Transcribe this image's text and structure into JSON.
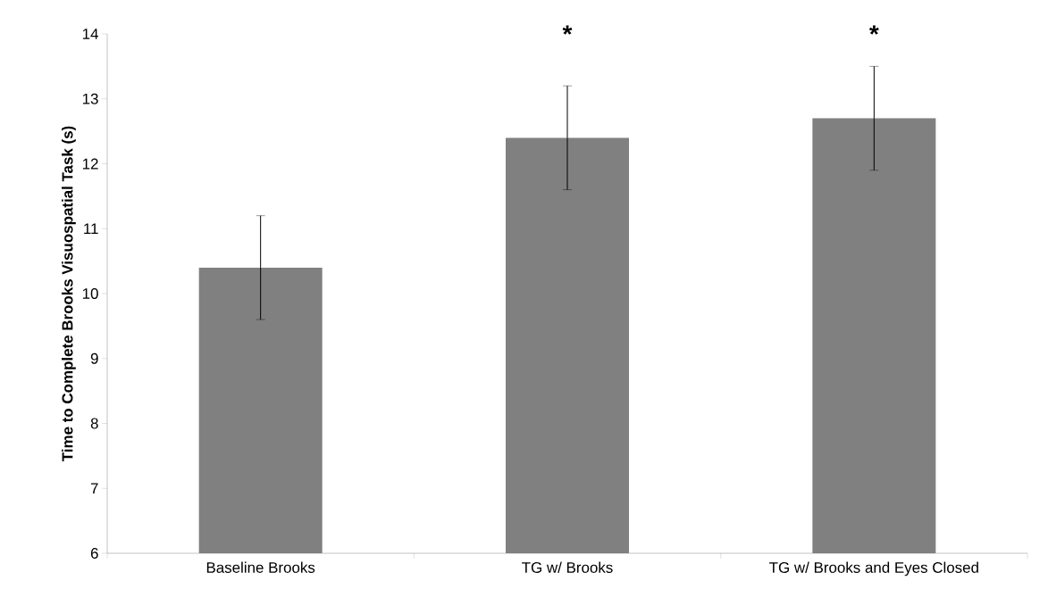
{
  "chart_data": {
    "type": "bar",
    "ylabel": "Time to Complete Brooks Visuospatial Task (s)",
    "categories": [
      "Baseline Brooks",
      "TG w/ Brooks",
      "TG w/ Brooks and Eyes Closed"
    ],
    "values": [
      10.4,
      12.4,
      12.7
    ],
    "errors": [
      0.8,
      0.8,
      0.8
    ],
    "color": "#808080",
    "ylim": [
      6,
      14
    ],
    "yticks": [
      6,
      7,
      8,
      9,
      10,
      11,
      12,
      13,
      14
    ],
    "grid": false,
    "annotations": [
      "*",
      "*"
    ]
  }
}
